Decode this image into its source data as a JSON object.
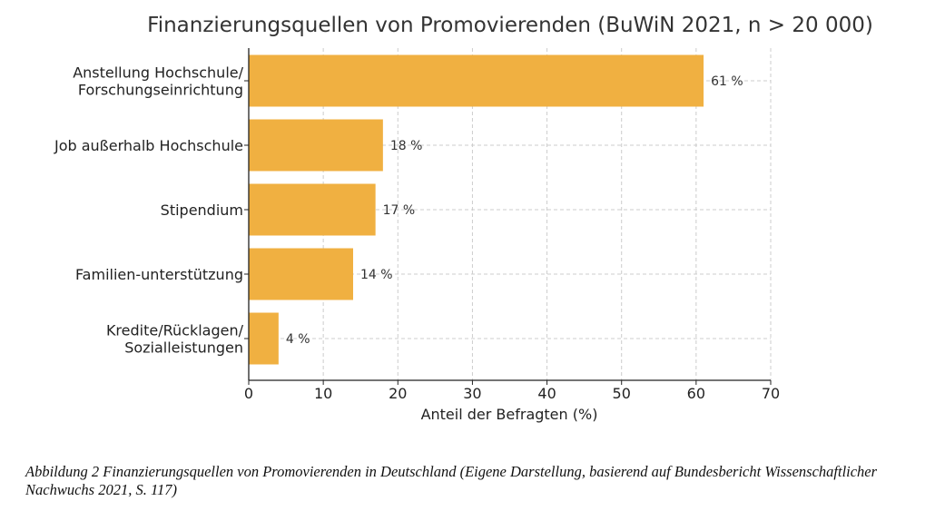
{
  "chart_data": {
    "type": "bar",
    "orientation": "horizontal",
    "title": "Finanzierungsquellen von Promovierenden (BuWiN 2021, n > 20 000)",
    "xlabel": "Anteil der Befragten (%)",
    "ylabel": "",
    "categories": [
      [
        "Anstellung Hochschule/",
        "Forschungseinrichtung"
      ],
      [
        "Job außerhalb Hochschule"
      ],
      [
        "Stipendium"
      ],
      [
        "Familien-unterstützung"
      ],
      [
        "Kredite/Rücklagen/",
        "Sozialleistungen"
      ]
    ],
    "values": [
      61,
      18,
      17,
      14,
      4
    ],
    "data_labels": [
      "61 %",
      "18 %",
      "17 %",
      "14 %",
      "4 %"
    ],
    "xlim": [
      0,
      70
    ],
    "xticks": [
      0,
      10,
      20,
      30,
      40,
      50,
      60,
      70
    ],
    "grid": true,
    "bar_color": "#F0B041"
  },
  "caption": "Abbildung 2 Finanzierungsquellen von Promovierenden in Deutschland (Eigene Darstellung, basierend auf Bundesbericht Wissenschaftlicher Nachwuchs 2021, S. 117)"
}
